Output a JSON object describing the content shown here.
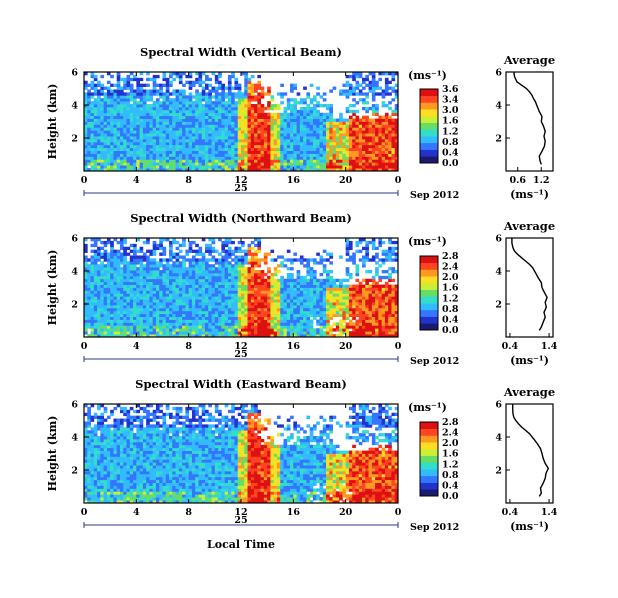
{
  "chart_data": [
    {
      "type": "heatmap",
      "title": "Spectral Width (Vertical Beam)",
      "ylabel": "Height (km)",
      "xticks": [
        "0",
        "4",
        "8",
        "12",
        "16",
        "20",
        "0"
      ],
      "yticks": [
        "6",
        "4",
        "2"
      ],
      "xlim": [
        0,
        24
      ],
      "ylim": [
        0,
        6
      ],
      "date_day": "25",
      "date_label": "Sep 2012",
      "colorbar": {
        "unit": "(ms⁻¹)",
        "ticks": [
          "3.6",
          "3.4",
          "3.0",
          "1.6",
          "1.2",
          "0.8",
          "0.4",
          "0.0"
        ],
        "colors": [
          "#1a1a6e",
          "#2233cc",
          "#3377ff",
          "#33bbff",
          "#33ddcc",
          "#66dd66",
          "#ccee33",
          "#ffdd22",
          "#ff9922",
          "#ff4422",
          "#dd1111"
        ]
      },
      "profile": {
        "title": "Average",
        "xlabel": "(ms⁻¹)",
        "xticks": [
          "0.6",
          "1.2"
        ],
        "yticks": [
          "6",
          "4",
          "2"
        ],
        "xlim": [
          0.3,
          1.5
        ],
        "ylim": [
          0,
          6
        ],
        "x": [
          1.2,
          1.17,
          1.15,
          1.22,
          1.28,
          1.3,
          1.27,
          1.3,
          1.26,
          1.2,
          1.22,
          1.15,
          1.1,
          1.05,
          1.0,
          0.96,
          0.9,
          0.82,
          0.7,
          0.58,
          0.52,
          0.5
        ],
        "y": [
          0.4,
          0.6,
          0.9,
          1.2,
          1.5,
          1.8,
          2.1,
          2.4,
          2.7,
          3.0,
          3.3,
          3.6,
          3.9,
          4.2,
          4.4,
          4.6,
          4.8,
          5.0,
          5.2,
          5.4,
          5.7,
          6.0
        ]
      }
    },
    {
      "type": "heatmap",
      "title": "Spectral Width (Northward Beam)",
      "ylabel": "Height (km)",
      "xticks": [
        "0",
        "4",
        "8",
        "12",
        "16",
        "20",
        "0"
      ],
      "yticks": [
        "6",
        "4",
        "2"
      ],
      "xlim": [
        0,
        24
      ],
      "ylim": [
        0,
        6
      ],
      "date_day": "25",
      "date_label": "Sep 2012",
      "colorbar": {
        "unit": "(ms⁻¹)",
        "ticks": [
          "2.8",
          "2.4",
          "2.0",
          "1.6",
          "1.2",
          "0.8",
          "0.4",
          "0.0"
        ],
        "colors": [
          "#1a1a6e",
          "#2233cc",
          "#3377ff",
          "#33bbff",
          "#33ddcc",
          "#66dd66",
          "#ccee33",
          "#ffdd22",
          "#ff9922",
          "#ff4422",
          "#dd1111"
        ]
      },
      "profile": {
        "title": "Average",
        "xlabel": "(ms⁻¹)",
        "xticks": [
          "0.4",
          "1.4"
        ],
        "yticks": [
          "6",
          "4",
          "2"
        ],
        "xlim": [
          0.3,
          1.5
        ],
        "ylim": [
          0,
          6
        ],
        "x": [
          1.15,
          1.2,
          1.25,
          1.3,
          1.27,
          1.33,
          1.3,
          1.35,
          1.28,
          1.22,
          1.2,
          1.12,
          1.05,
          0.98,
          0.9,
          0.8,
          0.7,
          0.6,
          0.52,
          0.48,
          0.45,
          0.45
        ],
        "y": [
          0.4,
          0.6,
          0.9,
          1.2,
          1.5,
          1.8,
          2.1,
          2.4,
          2.7,
          3.0,
          3.3,
          3.6,
          3.9,
          4.2,
          4.4,
          4.6,
          4.8,
          5.0,
          5.2,
          5.4,
          5.7,
          6.0
        ]
      }
    },
    {
      "type": "heatmap",
      "title": "Spectral Width (Eastward Beam)",
      "ylabel": "Height (km)",
      "xticks": [
        "0",
        "4",
        "8",
        "12",
        "16",
        "20",
        "0"
      ],
      "yticks": [
        "6",
        "4",
        "2"
      ],
      "xlim": [
        0,
        24
      ],
      "ylim": [
        0,
        6
      ],
      "date_day": "25",
      "date_label": "Sep 2012",
      "colorbar": {
        "unit": "(ms⁻¹)",
        "ticks": [
          "2.8",
          "2.4",
          "2.0",
          "1.6",
          "1.2",
          "0.8",
          "0.4",
          "0.0"
        ],
        "colors": [
          "#1a1a6e",
          "#2233cc",
          "#3377ff",
          "#33bbff",
          "#33ddcc",
          "#66dd66",
          "#ccee33",
          "#ffdd22",
          "#ff9922",
          "#ff4422",
          "#dd1111"
        ]
      },
      "profile": {
        "title": "Average",
        "xlabel": "(ms⁻¹)",
        "xticks": [
          "0.4",
          "1.4"
        ],
        "yticks": [
          "6",
          "4",
          "2"
        ],
        "xlim": [
          0.3,
          1.5
        ],
        "ylim": [
          0,
          6
        ],
        "x": [
          1.15,
          1.2,
          1.18,
          1.25,
          1.3,
          1.32,
          1.38,
          1.3,
          1.25,
          1.22,
          1.18,
          1.1,
          1.0,
          0.9,
          0.8,
          0.7,
          0.62,
          0.55,
          0.5,
          0.48,
          0.47,
          0.47
        ],
        "y": [
          0.4,
          0.6,
          0.9,
          1.2,
          1.5,
          1.8,
          2.1,
          2.4,
          2.7,
          3.0,
          3.3,
          3.6,
          3.9,
          4.2,
          4.4,
          4.6,
          4.8,
          5.0,
          5.2,
          5.4,
          5.7,
          6.0
        ]
      }
    }
  ],
  "xlabel": "Local Time"
}
